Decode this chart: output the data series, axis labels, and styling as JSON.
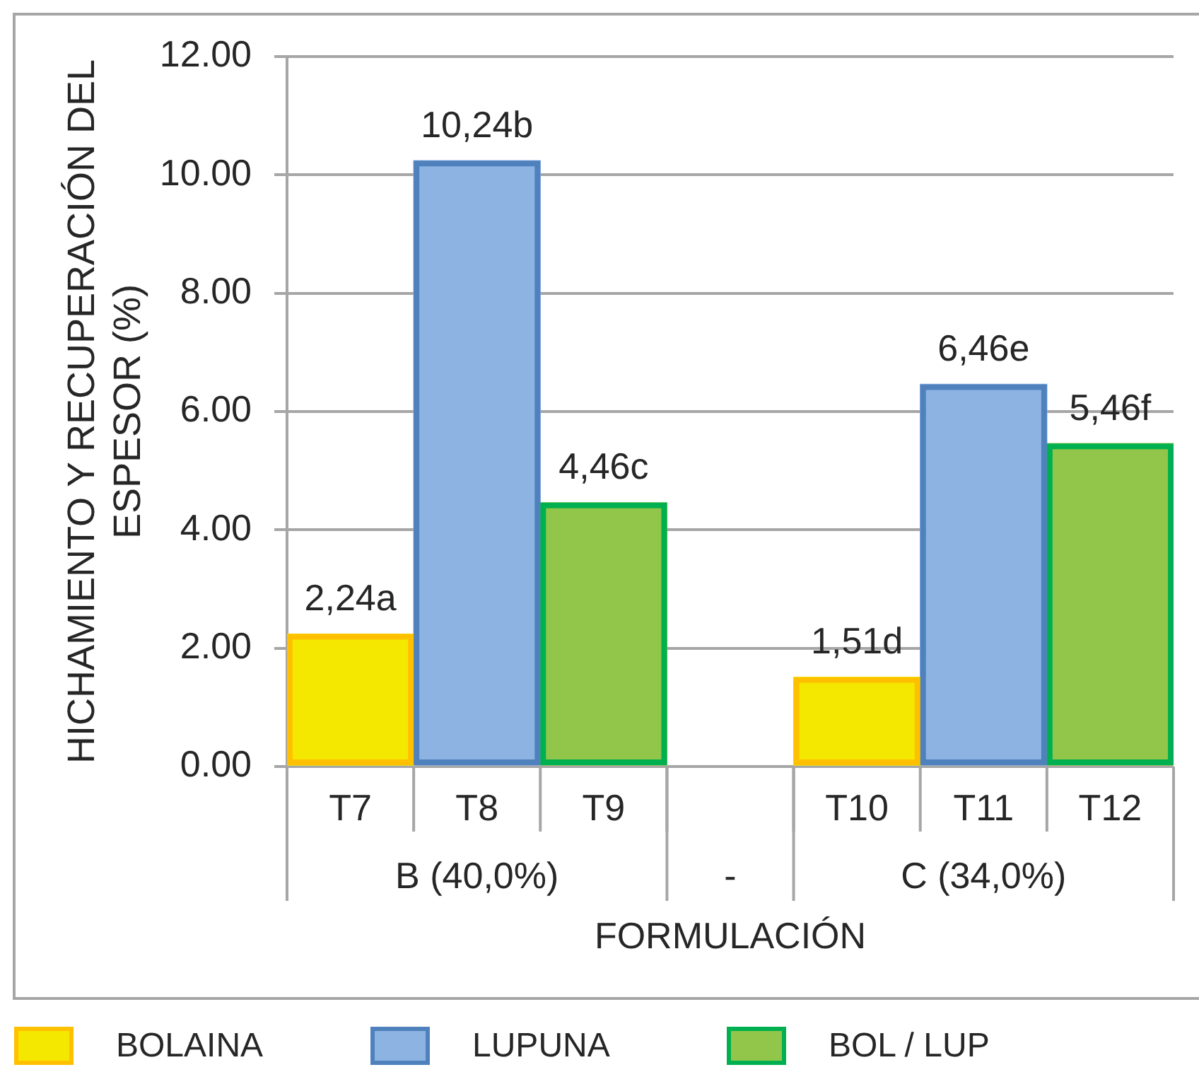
{
  "chart_data": {
    "type": "bar",
    "xlabel": "FORMULACIÓN",
    "ylabel": "HICHAMIENTO Y RECUPERACIÓN DEL ESPESOR (%)",
    "categories": [
      "T7",
      "T8",
      "T9",
      null,
      "T10",
      "T11",
      "T12"
    ],
    "annotations": [
      "B (40,0%)",
      "-",
      "C (34,0%)"
    ],
    "series": [
      {
        "name": "BOLAINA",
        "color": "#f5e800",
        "values": [
          2.24,
          null,
          null,
          null,
          1.51,
          null,
          null
        ],
        "value_labels": [
          "2,24a",
          null,
          null,
          null,
          "1,51d",
          null,
          null
        ]
      },
      {
        "name": "LUPUNA",
        "color": "#8db3e2",
        "values": [
          null,
          10.24,
          null,
          null,
          null,
          6.46,
          null
        ],
        "value_labels": [
          null,
          "10,24b",
          null,
          null,
          null,
          "6,46e",
          null
        ]
      },
      {
        "name": "BOL / LUP",
        "color": "#92c64b",
        "values": [
          null,
          null,
          4.46,
          null,
          null,
          null,
          5.46
        ],
        "value_labels": [
          null,
          null,
          "4,46c",
          null,
          null,
          null,
          "5,46f"
        ]
      }
    ],
    "ylim": [
      0,
      12
    ],
    "yticks": [
      {
        "value": 0,
        "label": "0.00"
      },
      {
        "value": 2,
        "label": "2.00"
      },
      {
        "value": 4,
        "label": "4.00"
      },
      {
        "value": 6,
        "label": "6.00"
      },
      {
        "value": 8,
        "label": "8.00"
      },
      {
        "value": 10,
        "label": "10.00"
      },
      {
        "value": 12,
        "label": "12.00"
      }
    ],
    "grid": "y",
    "legend": "bottom left"
  }
}
